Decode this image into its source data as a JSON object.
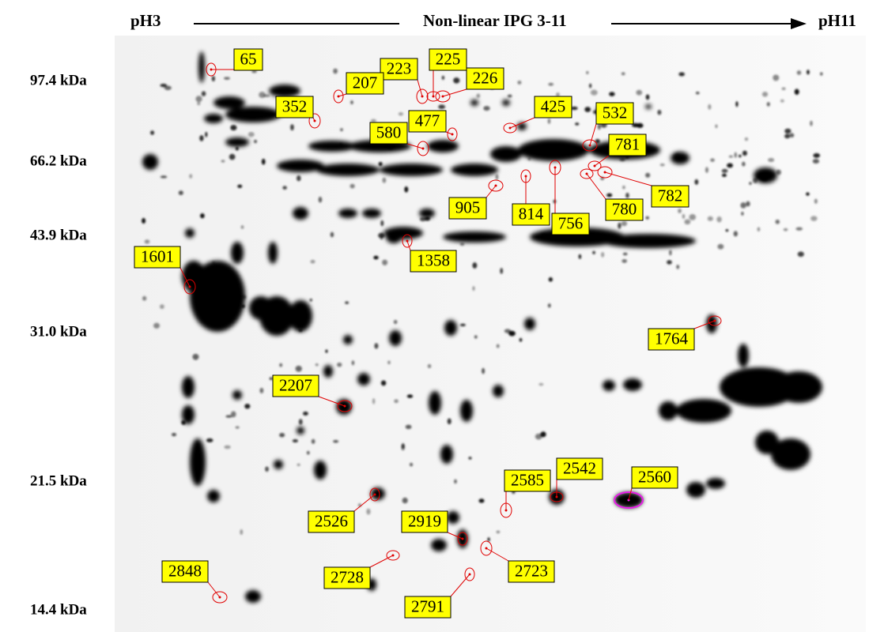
{
  "header": {
    "left": "pH3",
    "center": "Non-linear IPG 3-11",
    "right": "pH11"
  },
  "mw_labels": [
    "97.4 kDa",
    "66.2 kDa",
    "43.9 kDa",
    "31.0 kDa",
    "21.5 kDa",
    "14.4 kDa"
  ],
  "spot_labels": [
    "65",
    "223",
    "225",
    "226",
    "207",
    "352",
    "425",
    "532",
    "477",
    "580",
    "781",
    "905",
    "814",
    "756",
    "780",
    "782",
    "1358",
    "1601",
    "1764",
    "2207",
    "2526",
    "2585",
    "2542",
    "2560",
    "2919",
    "2723",
    "2728",
    "2848",
    "2791"
  ]
}
